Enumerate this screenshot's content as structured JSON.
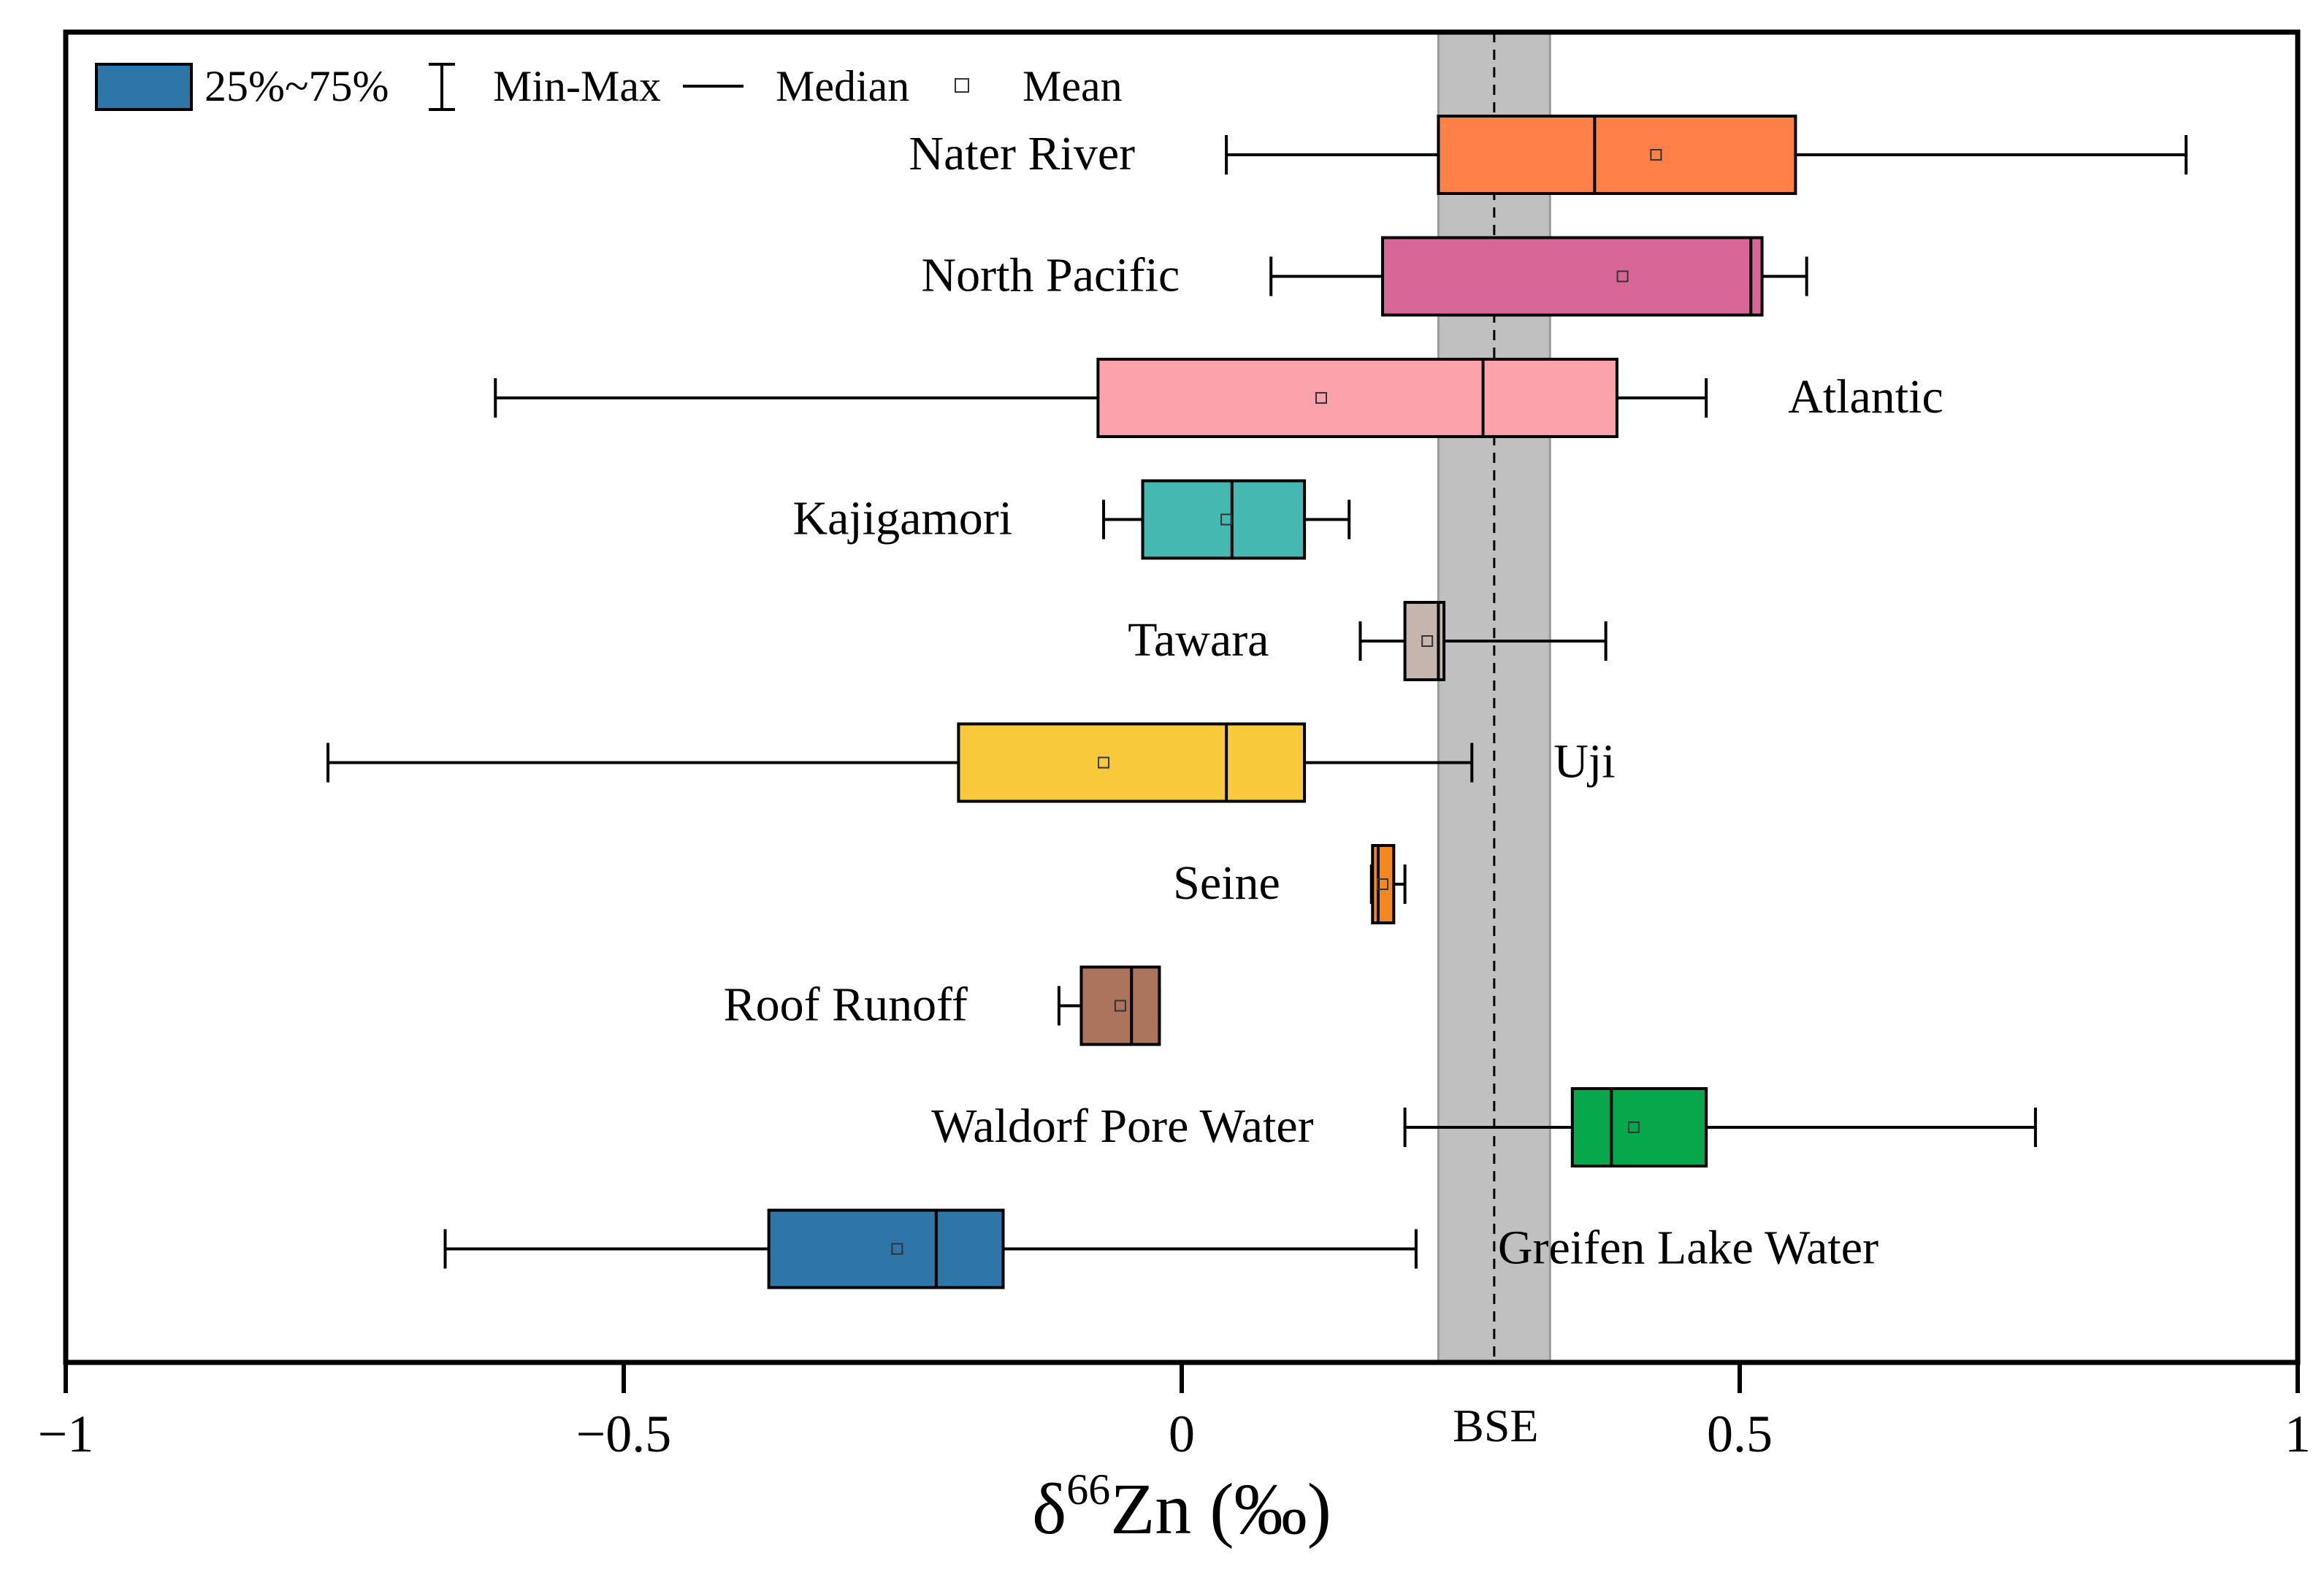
{
  "chart_data": {
    "type": "box",
    "orientation": "horizontal",
    "xlabel_symbol": "δ",
    "xlabel_sup": "66",
    "xlabel_rest": "Zn (‰)",
    "xlim": [
      -1,
      1
    ],
    "xticks": [
      -1,
      -0.5,
      0,
      0.5,
      1
    ],
    "xtick_labels": [
      "−1",
      "−0.5",
      "0",
      "0.5",
      "1"
    ],
    "legend": {
      "position": "top-left",
      "items": {
        "box": "25%~75%",
        "whisker": "Min-Max",
        "median": "Median",
        "mean": "Mean"
      },
      "box_color": "#2e75a8"
    },
    "reference_band": {
      "label": "BSE",
      "center": 0.28,
      "range": [
        0.23,
        0.33
      ],
      "color": "#c0c0c0"
    },
    "series": [
      {
        "name": "Nater River",
        "min": 0.04,
        "q1": 0.23,
        "median": 0.37,
        "q3": 0.55,
        "max": 0.9,
        "mean": 0.425,
        "color": "#ff8147",
        "label_side": "left"
      },
      {
        "name": "North Pacific",
        "min": 0.08,
        "q1": 0.18,
        "median": 0.51,
        "q3": 0.52,
        "max": 0.56,
        "mean": 0.395,
        "color": "#d86797",
        "label_side": "left"
      },
      {
        "name": "Atlantic",
        "min": -0.615,
        "q1": -0.075,
        "median": 0.27,
        "q3": 0.39,
        "max": 0.47,
        "mean": 0.125,
        "color": "#fba2aa",
        "label_side": "right"
      },
      {
        "name": "Kajigamori",
        "min": -0.07,
        "q1": -0.035,
        "median": 0.045,
        "q3": 0.11,
        "max": 0.15,
        "mean": 0.04,
        "color": "#45b9b1",
        "label_side": "left"
      },
      {
        "name": "Tawara",
        "min": 0.16,
        "q1": 0.2,
        "median": 0.23,
        "q3": 0.235,
        "max": 0.38,
        "mean": 0.22,
        "color": "#c6b5ad",
        "label_side": "left"
      },
      {
        "name": "Uji",
        "min": -0.765,
        "q1": -0.2,
        "median": 0.04,
        "q3": 0.11,
        "max": 0.26,
        "mean": -0.07,
        "color": "#f8c93a",
        "label_side": "right"
      },
      {
        "name": "Seine",
        "min": 0.17,
        "q1": 0.171,
        "median": 0.176,
        "q3": 0.19,
        "max": 0.2,
        "mean": 0.18,
        "color": "#f5871f",
        "label_side": "left"
      },
      {
        "name": "Roof Runoff",
        "min": -0.11,
        "q1": -0.09,
        "median": -0.045,
        "q3": -0.02,
        "max": -0.02,
        "mean": -0.055,
        "color": "#ad745d",
        "label_side": "left"
      },
      {
        "name": "Waldorf Pore Water",
        "min": 0.2,
        "q1": 0.35,
        "median": 0.385,
        "q3": 0.47,
        "max": 0.765,
        "mean": 0.405,
        "color": "#06a84b",
        "label_side": "left"
      },
      {
        "name": "Greifen Lake Water",
        "min": -0.66,
        "q1": -0.37,
        "median": -0.22,
        "q3": -0.16,
        "max": 0.21,
        "mean": -0.255,
        "color": "#2e75a8",
        "label_side": "right"
      }
    ]
  }
}
